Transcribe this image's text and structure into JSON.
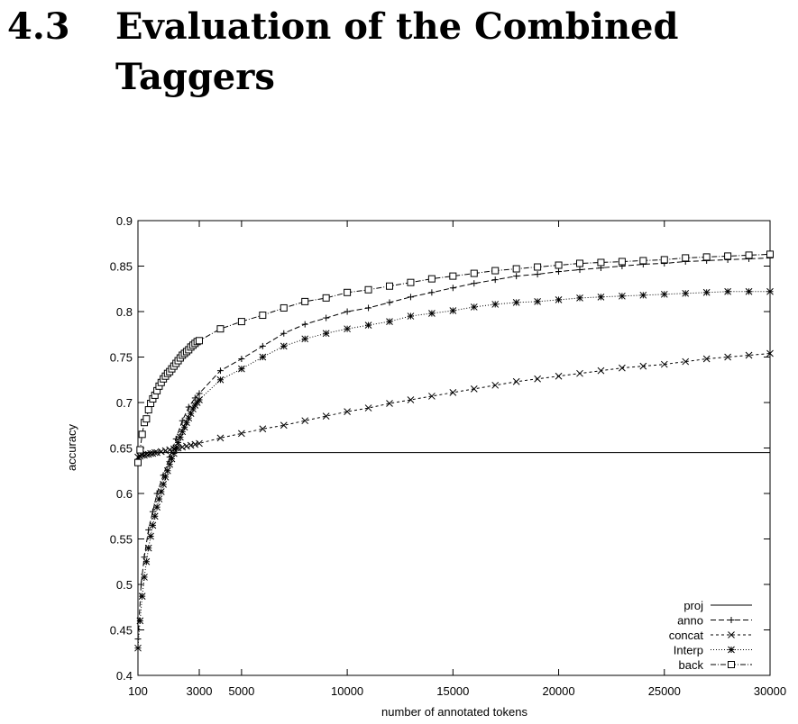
{
  "heading": {
    "number": "4.3",
    "title_line1": "Evaluation of the Combined",
    "title_line2": "Taggers"
  },
  "chart_data": {
    "type": "line",
    "title": "",
    "xlabel": "number of annotated tokens",
    "ylabel": "accuracy",
    "xlim": [
      100,
      30000
    ],
    "ylim": [
      0.4,
      0.9
    ],
    "x_ticks": [
      100,
      3000,
      5000,
      10000,
      15000,
      20000,
      25000,
      30000
    ],
    "y_ticks": [
      0.4,
      0.45,
      0.5,
      0.55,
      0.6,
      0.65,
      0.7,
      0.75,
      0.8,
      0.85,
      0.9
    ],
    "y_tick_labels": [
      "0.4",
      "0.45",
      "0.5",
      "0.55",
      "0.6",
      "0.65",
      "0.7",
      "0.75",
      "0.8",
      "0.85",
      "0.9"
    ],
    "legend_position": "bottom-right",
    "grid": false,
    "series": [
      {
        "name": "proj",
        "marker": "none",
        "dash": "solid",
        "x": [
          100,
          30000
        ],
        "y": [
          0.645,
          0.645
        ]
      },
      {
        "name": "anno",
        "marker": "plus",
        "dash": "6,3",
        "x": [
          100,
          250,
          400,
          600,
          800,
          1000,
          1300,
          1600,
          1900,
          2200,
          2500,
          2800,
          3000,
          4000,
          5000,
          6000,
          7000,
          8000,
          9000,
          10000,
          11000,
          12000,
          13000,
          14000,
          15000,
          16000,
          17000,
          18000,
          19000,
          20000,
          21000,
          22000,
          23000,
          24000,
          25000,
          26000,
          27000,
          28000,
          29000,
          30000
        ],
        "y": [
          0.44,
          0.5,
          0.53,
          0.56,
          0.58,
          0.6,
          0.62,
          0.64,
          0.66,
          0.68,
          0.695,
          0.705,
          0.71,
          0.735,
          0.748,
          0.762,
          0.776,
          0.786,
          0.793,
          0.8,
          0.804,
          0.81,
          0.816,
          0.821,
          0.826,
          0.831,
          0.835,
          0.839,
          0.841,
          0.844,
          0.846,
          0.848,
          0.85,
          0.852,
          0.853,
          0.855,
          0.856,
          0.857,
          0.858,
          0.859
        ]
      },
      {
        "name": "concat",
        "marker": "cross",
        "dash": "3,3",
        "x": [
          100,
          200,
          300,
          400,
          500,
          600,
          700,
          800,
          900,
          1000,
          1200,
          1400,
          1600,
          1800,
          2000,
          2200,
          2400,
          2600,
          2800,
          3000,
          4000,
          5000,
          6000,
          7000,
          8000,
          9000,
          10000,
          11000,
          12000,
          13000,
          14000,
          15000,
          16000,
          17000,
          18000,
          19000,
          20000,
          21000,
          22000,
          23000,
          24000,
          25000,
          26000,
          27000,
          28000,
          29000,
          30000
        ],
        "y": [
          0.64,
          0.641,
          0.642,
          0.642,
          0.643,
          0.643,
          0.644,
          0.644,
          0.645,
          0.645,
          0.646,
          0.647,
          0.648,
          0.649,
          0.65,
          0.651,
          0.652,
          0.653,
          0.654,
          0.655,
          0.661,
          0.666,
          0.671,
          0.675,
          0.68,
          0.685,
          0.69,
          0.694,
          0.699,
          0.703,
          0.707,
          0.711,
          0.715,
          0.719,
          0.723,
          0.726,
          0.729,
          0.732,
          0.735,
          0.738,
          0.74,
          0.742,
          0.745,
          0.748,
          0.75,
          0.752,
          0.754
        ]
      },
      {
        "name": "Interp",
        "marker": "star",
        "dash": "1,2",
        "x": [
          100,
          200,
          300,
          400,
          500,
          600,
          700,
          800,
          900,
          1000,
          1100,
          1200,
          1300,
          1400,
          1500,
          1600,
          1700,
          1800,
          1900,
          2000,
          2100,
          2200,
          2300,
          2400,
          2500,
          2600,
          2700,
          2800,
          2900,
          3000,
          4000,
          5000,
          6000,
          7000,
          8000,
          9000,
          10000,
          11000,
          12000,
          13000,
          14000,
          15000,
          16000,
          17000,
          18000,
          19000,
          20000,
          21000,
          22000,
          23000,
          24000,
          25000,
          26000,
          27000,
          28000,
          29000,
          30000
        ],
        "y": [
          0.43,
          0.46,
          0.487,
          0.508,
          0.525,
          0.54,
          0.553,
          0.565,
          0.575,
          0.585,
          0.594,
          0.602,
          0.61,
          0.618,
          0.625,
          0.632,
          0.638,
          0.644,
          0.65,
          0.656,
          0.662,
          0.668,
          0.673,
          0.678,
          0.683,
          0.688,
          0.693,
          0.697,
          0.7,
          0.703,
          0.725,
          0.737,
          0.75,
          0.762,
          0.77,
          0.776,
          0.781,
          0.785,
          0.789,
          0.795,
          0.798,
          0.801,
          0.805,
          0.808,
          0.81,
          0.811,
          0.813,
          0.815,
          0.816,
          0.817,
          0.818,
          0.819,
          0.82,
          0.821,
          0.822,
          0.822,
          0.822
        ]
      },
      {
        "name": "back",
        "marker": "square",
        "dash": "6,2,1,2",
        "x": [
          100,
          200,
          300,
          400,
          500,
          600,
          700,
          800,
          900,
          1000,
          1100,
          1200,
          1300,
          1400,
          1500,
          1600,
          1700,
          1800,
          1900,
          2000,
          2100,
          2200,
          2300,
          2400,
          2500,
          2600,
          2700,
          2800,
          2900,
          3000,
          4000,
          5000,
          6000,
          7000,
          8000,
          9000,
          10000,
          11000,
          12000,
          13000,
          14000,
          15000,
          16000,
          17000,
          18000,
          19000,
          20000,
          21000,
          22000,
          23000,
          24000,
          25000,
          26000,
          27000,
          28000,
          29000,
          30000
        ],
        "y": [
          0.634,
          0.648,
          0.665,
          0.678,
          0.682,
          0.692,
          0.699,
          0.704,
          0.708,
          0.713,
          0.718,
          0.722,
          0.726,
          0.729,
          0.732,
          0.734,
          0.737,
          0.74,
          0.743,
          0.746,
          0.749,
          0.752,
          0.754,
          0.756,
          0.758,
          0.761,
          0.763,
          0.765,
          0.767,
          0.768,
          0.781,
          0.789,
          0.796,
          0.804,
          0.811,
          0.815,
          0.821,
          0.824,
          0.828,
          0.832,
          0.836,
          0.839,
          0.842,
          0.845,
          0.847,
          0.849,
          0.851,
          0.853,
          0.854,
          0.855,
          0.856,
          0.857,
          0.859,
          0.86,
          0.861,
          0.862,
          0.863
        ]
      }
    ]
  }
}
